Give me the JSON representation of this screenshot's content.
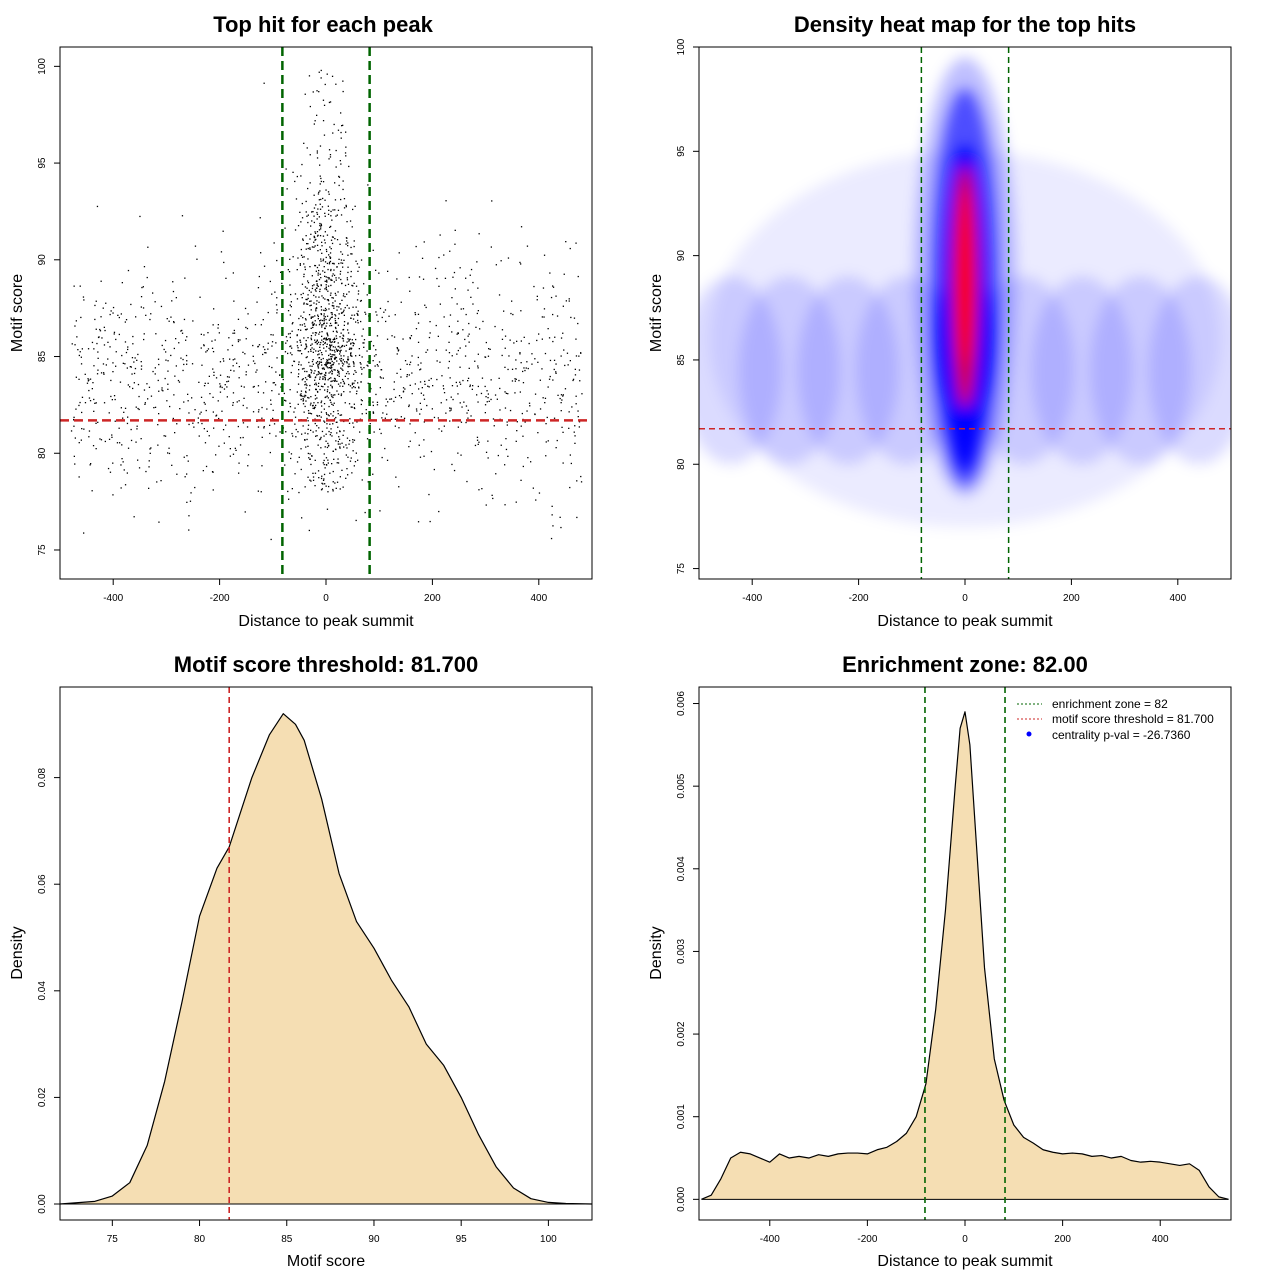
{
  "chart_data": [
    {
      "type": "scatter",
      "title": "Top hit for each peak",
      "xlabel": "Distance to peak summit",
      "ylabel": "Motif score",
      "xlim": [
        -500,
        500
      ],
      "ylim": [
        73.5,
        101
      ],
      "xticks": [
        -400,
        -200,
        0,
        200,
        400
      ],
      "yticks": [
        75,
        80,
        85,
        90,
        95,
        100
      ],
      "vlines": [
        -82,
        82
      ],
      "hline": 81.7,
      "point_count": 2400,
      "colors": {
        "points": "#000000",
        "vline": "#006400",
        "hline": "#cd2626"
      }
    },
    {
      "type": "heatmap",
      "title": "Density heat map for the top hits",
      "xlabel": "Distance to peak summit",
      "ylabel": "Motif score",
      "xlim": [
        -500,
        500
      ],
      "ylim": [
        74.5,
        100
      ],
      "xticks": [
        -400,
        -200,
        0,
        200,
        400
      ],
      "yticks": [
        75,
        80,
        85,
        90,
        95,
        100
      ],
      "vlines": [
        -82,
        82
      ],
      "hline": 81.7,
      "colors": {
        "low": "#ffffff",
        "mid": "#0000ff",
        "high": "#ff0000",
        "vline": "#006400",
        "hline": "#cd2626"
      }
    },
    {
      "type": "area",
      "title": "Motif score threshold: 81.700",
      "xlabel": "Motif score",
      "ylabel": "Density",
      "xlim": [
        72,
        102.5
      ],
      "ylim": [
        -0.003,
        0.097
      ],
      "xticks": [
        75,
        80,
        85,
        90,
        95,
        100
      ],
      "yticks": [
        0.0,
        0.02,
        0.04,
        0.06,
        0.08
      ],
      "ytick_labels": [
        "0.00",
        "0.02",
        "0.04",
        "0.06",
        "0.08"
      ],
      "vline": 81.7,
      "x": [
        72,
        74,
        75,
        76,
        77,
        78,
        79,
        80,
        81,
        81.7,
        82,
        83,
        84,
        84.8,
        85.5,
        86,
        87,
        88,
        89,
        90,
        91,
        92,
        93,
        94,
        95,
        96,
        97,
        98,
        99,
        100,
        101,
        102.5
      ],
      "y": [
        0.0,
        0.0005,
        0.0015,
        0.004,
        0.011,
        0.023,
        0.038,
        0.054,
        0.063,
        0.067,
        0.07,
        0.08,
        0.088,
        0.092,
        0.09,
        0.087,
        0.076,
        0.062,
        0.053,
        0.048,
        0.042,
        0.037,
        0.03,
        0.026,
        0.02,
        0.013,
        0.007,
        0.003,
        0.001,
        0.0003,
        0.0001,
        0.0
      ],
      "colors": {
        "fill": "#f5deb3",
        "line": "#000000",
        "vline": "#cd2626"
      }
    },
    {
      "type": "area",
      "title": "Enrichment zone: 82.00",
      "xlabel": "Distance to peak summit",
      "ylabel": "Density",
      "xlim": [
        -545,
        545
      ],
      "ylim": [
        -0.00025,
        0.0062
      ],
      "xticks": [
        -400,
        -200,
        0,
        200,
        400
      ],
      "yticks": [
        0.0,
        0.001,
        0.002,
        0.003,
        0.004,
        0.005,
        0.006
      ],
      "ytick_labels": [
        "0.000",
        "0.001",
        "0.002",
        "0.003",
        "0.004",
        "0.005",
        "0.006"
      ],
      "vlines": [
        -82,
        82
      ],
      "x": [
        -540,
        -520,
        -500,
        -480,
        -460,
        -440,
        -420,
        -400,
        -380,
        -360,
        -340,
        -320,
        -300,
        -280,
        -260,
        -240,
        -220,
        -200,
        -180,
        -160,
        -140,
        -120,
        -100,
        -80,
        -60,
        -40,
        -20,
        -10,
        0,
        10,
        20,
        40,
        60,
        80,
        100,
        120,
        140,
        160,
        180,
        200,
        220,
        240,
        260,
        280,
        300,
        320,
        340,
        360,
        380,
        400,
        420,
        440,
        460,
        480,
        500,
        520,
        540
      ],
      "y": [
        0.0,
        5e-05,
        0.00025,
        0.0005,
        0.00057,
        0.00055,
        0.0005,
        0.00045,
        0.00055,
        0.0005,
        0.00052,
        0.0005,
        0.00054,
        0.00052,
        0.00055,
        0.00056,
        0.00056,
        0.00055,
        0.0006,
        0.00063,
        0.0007,
        0.0008,
        0.001,
        0.0014,
        0.0023,
        0.0035,
        0.005,
        0.0057,
        0.0059,
        0.0055,
        0.0046,
        0.0028,
        0.0017,
        0.0012,
        0.0009,
        0.00075,
        0.00068,
        0.0006,
        0.00057,
        0.00055,
        0.00056,
        0.00055,
        0.00052,
        0.00053,
        0.0005,
        0.00052,
        0.00047,
        0.00045,
        0.00046,
        0.00045,
        0.00043,
        0.00041,
        0.00043,
        0.00035,
        0.00015,
        3e-05,
        0.0
      ],
      "legend": [
        {
          "label": "enrichment zone = 82",
          "style": "dotted",
          "color": "#006400"
        },
        {
          "label": "motif score threshold = 81.700",
          "style": "dotted",
          "color": "#cd2626"
        },
        {
          "label": "centrality p-val = -26.7360",
          "style": "point",
          "color": "#0000ff"
        }
      ],
      "legend_position": "top-right",
      "colors": {
        "fill": "#f5deb3",
        "line": "#000000",
        "vline": "#006400"
      }
    }
  ]
}
